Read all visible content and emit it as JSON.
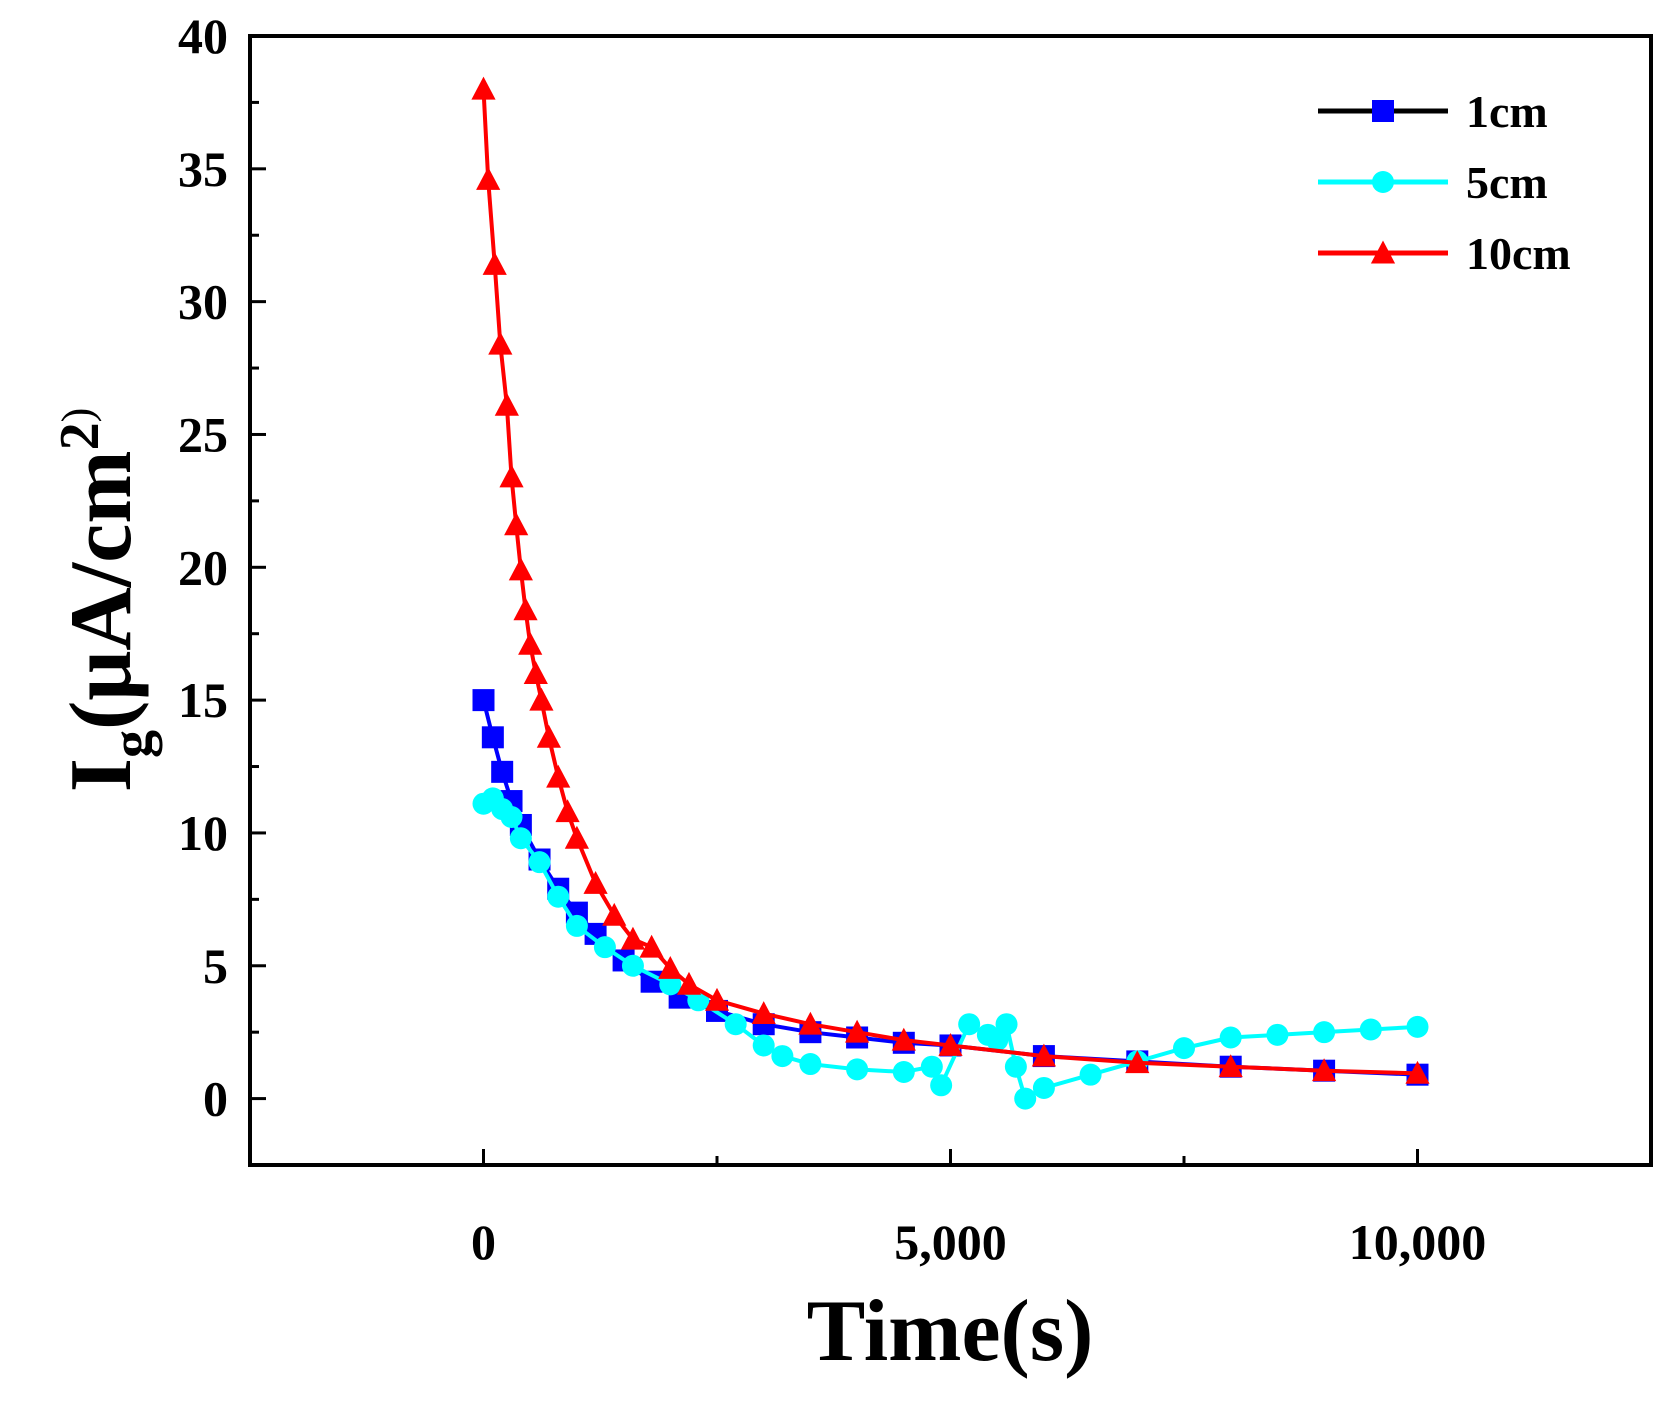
{
  "chart_data": {
    "type": "line",
    "title": "",
    "xlabel": "Time(s)",
    "ylabel_main": "I",
    "ylabel_sub": "g",
    "ylabel_rest": "(μA/cm",
    "ylabel_sup": "2",
    "ylabel_close": ")",
    "xlim": [
      -2500,
      12500
    ],
    "ylim": [
      -2.5,
      40
    ],
    "xticks": [
      0,
      5000,
      10000
    ],
    "xtick_labels": [
      "0",
      "5,000",
      "10,000"
    ],
    "yticks": [
      0,
      5,
      10,
      15,
      20,
      25,
      30,
      35,
      40
    ],
    "ytick_labels": [
      "0",
      "5",
      "10",
      "15",
      "20",
      "25",
      "30",
      "35",
      "40"
    ],
    "legend_position": "top-right",
    "series": [
      {
        "name": "1cm",
        "color": "#0000ff",
        "line_color": "#000000",
        "marker": "square",
        "x": [
          0,
          100,
          200,
          300,
          400,
          600,
          800,
          1000,
          1200,
          1500,
          1800,
          2100,
          2500,
          3000,
          3500,
          4000,
          4500,
          5000,
          6000,
          7000,
          8000,
          9000,
          10000
        ],
        "y": [
          15.0,
          13.6,
          12.3,
          11.2,
          10.3,
          9.0,
          7.9,
          7.0,
          6.2,
          5.2,
          4.4,
          3.8,
          3.3,
          2.8,
          2.5,
          2.3,
          2.1,
          2.0,
          1.6,
          1.4,
          1.2,
          1.05,
          0.9
        ]
      },
      {
        "name": "5cm",
        "color": "#00ffff",
        "line_color": "#00ffff",
        "marker": "circle",
        "x": [
          0,
          100,
          200,
          300,
          400,
          600,
          800,
          1000,
          1300,
          1600,
          2000,
          2300,
          2700,
          3000,
          3200,
          3500,
          4000,
          4500,
          4800,
          4900,
          5200,
          5400,
          5500,
          5600,
          5700,
          5800,
          6000,
          6500,
          7000,
          7500,
          8000,
          8500,
          9000,
          9500,
          10000
        ],
        "y": [
          11.1,
          11.3,
          10.9,
          10.6,
          9.8,
          8.9,
          7.6,
          6.5,
          5.7,
          5.0,
          4.3,
          3.7,
          2.8,
          2.0,
          1.6,
          1.3,
          1.1,
          1.0,
          1.2,
          0.5,
          2.8,
          2.4,
          2.2,
          2.8,
          1.2,
          0.0,
          0.4,
          0.9,
          1.4,
          1.9,
          2.3,
          2.4,
          2.5,
          2.6,
          2.7
        ]
      },
      {
        "name": "10cm",
        "color": "#ff0000",
        "line_color": "#ff0000",
        "marker": "triangle",
        "x": [
          0,
          50,
          120,
          180,
          250,
          300,
          350,
          400,
          450,
          500,
          560,
          620,
          700,
          800,
          900,
          1000,
          1200,
          1400,
          1600,
          1800,
          2000,
          2200,
          2500,
          3000,
          3500,
          4000,
          4500,
          5000,
          6000,
          7000,
          8000,
          9000,
          10000
        ],
        "y": [
          38.0,
          34.6,
          31.4,
          28.4,
          26.1,
          23.4,
          21.6,
          19.9,
          18.4,
          17.1,
          16.0,
          15.0,
          13.6,
          12.1,
          10.8,
          9.8,
          8.1,
          6.9,
          6.0,
          5.7,
          4.9,
          4.3,
          3.7,
          3.2,
          2.8,
          2.5,
          2.2,
          2.0,
          1.6,
          1.35,
          1.2,
          1.05,
          0.95
        ]
      }
    ]
  }
}
